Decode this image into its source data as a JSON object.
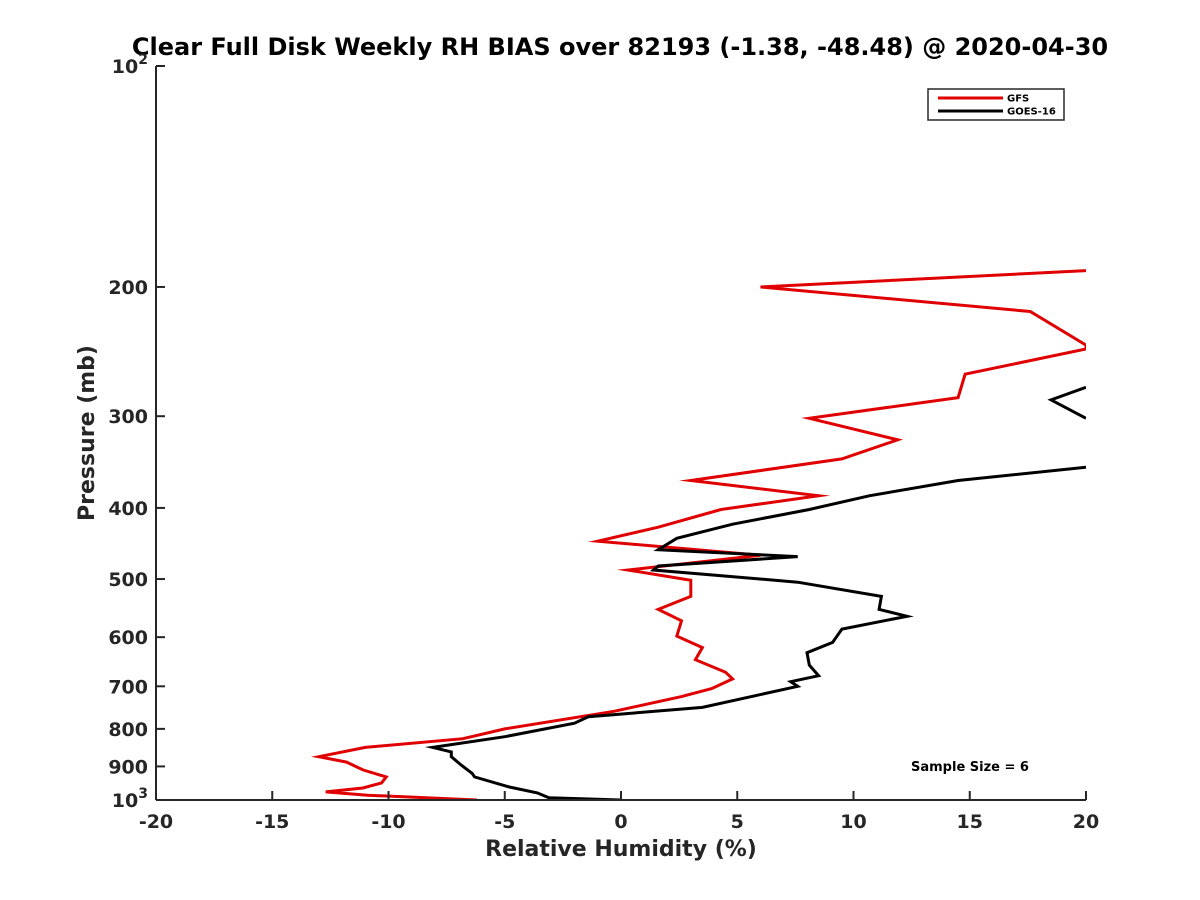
{
  "chart_data": {
    "type": "line",
    "title": "Clear Full Disk Weekly RH BIAS over 82193 (-1.38, -48.48) @ 2020-04-30",
    "xlabel": "Relative Humidity (%)",
    "ylabel": "Pressure (mb)",
    "xlim": [
      -20,
      20
    ],
    "ylim": [
      100,
      1000
    ],
    "y_scale": "log",
    "y_reversed": true,
    "x_ticks": [
      "-20",
      "-15",
      "-10",
      "-5",
      "0",
      "5",
      "10",
      "15",
      "20"
    ],
    "y_ticks": [
      {
        "base": "10",
        "exp": "2",
        "value": 100
      },
      {
        "label": "200",
        "value": 200
      },
      {
        "label": "300",
        "value": 300
      },
      {
        "label": "400",
        "value": 400
      },
      {
        "label": "500",
        "value": 500
      },
      {
        "label": "600",
        "value": 600
      },
      {
        "label": "700",
        "value": 700
      },
      {
        "label": "800",
        "value": 800
      },
      {
        "label": "900",
        "value": 900
      },
      {
        "base": "10",
        "exp": "3",
        "value": 1000
      }
    ],
    "grid": false,
    "legend_position": "top-right",
    "annotation": "Sample Size = 6",
    "series": [
      {
        "name": "GFS",
        "color": "#e00000",
        "points": [
          [
            20.0,
            190
          ],
          [
            6.0,
            200
          ],
          [
            17.6,
            216
          ],
          [
            20.0,
            240
          ],
          [
            20.0,
            243
          ],
          [
            14.8,
            263
          ],
          [
            14.5,
            283
          ],
          [
            8.1,
            302
          ],
          [
            11.9,
            323
          ],
          [
            9.5,
            343
          ],
          [
            3.0,
            367
          ],
          [
            8.5,
            385
          ],
          [
            4.3,
            402
          ],
          [
            1.6,
            425
          ],
          [
            -1.0,
            444
          ],
          [
            6.0,
            464
          ],
          [
            0.3,
            486
          ],
          [
            3.0,
            502
          ],
          [
            3.0,
            528
          ],
          [
            1.6,
            550
          ],
          [
            2.6,
            570
          ],
          [
            2.4,
            598
          ],
          [
            3.5,
            620
          ],
          [
            3.2,
            644
          ],
          [
            4.5,
            670
          ],
          [
            4.8,
            684
          ],
          [
            3.9,
            705
          ],
          [
            2.6,
            723
          ],
          [
            -0.3,
            757
          ],
          [
            -5.0,
            800
          ],
          [
            -6.8,
            825
          ],
          [
            -11.0,
            848
          ],
          [
            -13.0,
            873
          ],
          [
            -11.8,
            888
          ],
          [
            -11.1,
            910
          ],
          [
            -10.1,
            930
          ],
          [
            -10.3,
            948
          ],
          [
            -11.1,
            963
          ],
          [
            -12.7,
            975
          ],
          [
            -10.9,
            985
          ],
          [
            -6.2,
            1000
          ]
        ]
      },
      {
        "name": "GOES-16",
        "color": "#000000",
        "segments": [
          [
            [
              20.0,
              274
            ],
            [
              18.5,
              285
            ],
            [
              20.0,
              302
            ]
          ],
          [
            [
              20.0,
              352
            ],
            [
              14.5,
              367
            ],
            [
              10.7,
              385
            ],
            [
              8.1,
              402
            ],
            [
              4.8,
              421
            ],
            [
              2.4,
              440
            ],
            [
              1.6,
              456
            ],
            [
              7.6,
              466
            ],
            [
              1.6,
              480
            ],
            [
              1.4,
              486
            ],
            [
              7.6,
              505
            ],
            [
              11.2,
              528
            ],
            [
              11.1,
              550
            ],
            [
              12.3,
              562
            ],
            [
              9.5,
              585
            ],
            [
              9.1,
              610
            ],
            [
              8.0,
              630
            ],
            [
              8.1,
              655
            ],
            [
              8.5,
              677
            ],
            [
              7.3,
              690
            ],
            [
              7.6,
              700
            ],
            [
              3.5,
              748
            ],
            [
              -1.4,
              770
            ],
            [
              -2.0,
              786
            ],
            [
              -5.0,
              820
            ],
            [
              -8.1,
              848
            ],
            [
              -7.3,
              860
            ],
            [
              -7.3,
              873
            ],
            [
              -6.9,
              895
            ],
            [
              -6.4,
              920
            ],
            [
              -6.3,
              930
            ],
            [
              -4.8,
              960
            ],
            [
              -3.6,
              978
            ],
            [
              -3.1,
              993
            ],
            [
              0.0,
              1000
            ]
          ]
        ]
      }
    ]
  }
}
